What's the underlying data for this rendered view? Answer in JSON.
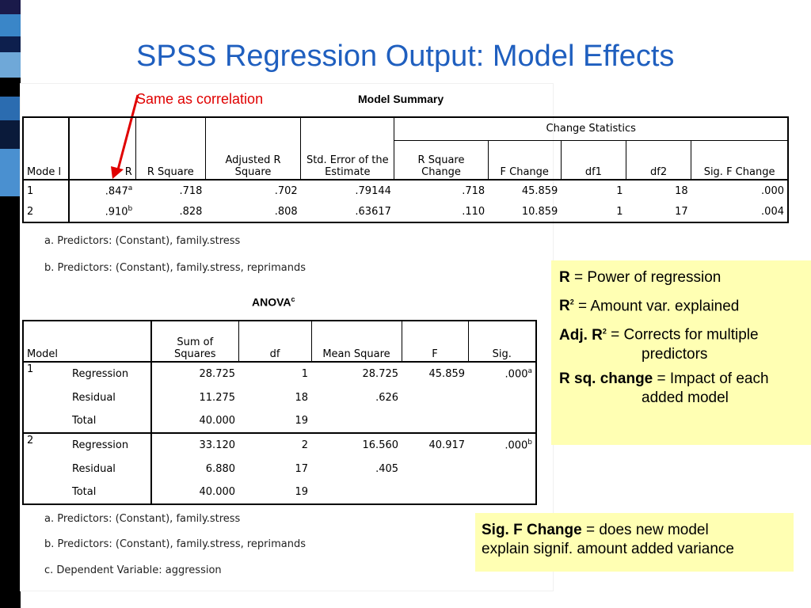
{
  "slide": {
    "title": "SPSS Regression Output: Model Effects",
    "annotation": "Same as correlation",
    "stripe_colors": [
      "#1a1a4a",
      "#3a86c8",
      "#0d1f4d",
      "#6fa8d8",
      "#000000",
      "#2b6cb0",
      "#0a1a3a",
      "#4a90d0",
      "#000000"
    ]
  },
  "model_summary": {
    "title": "Model Summary",
    "change_group": "Change Statistics",
    "headers": {
      "model": "Mode l",
      "r": "R",
      "r_square": "R Square",
      "adj_r_square": "Adjusted R Square",
      "std_error": "Std. Error of the Estimate",
      "r_square_change": "R Square Change",
      "f_change": "F Change",
      "df1": "df1",
      "df2": "df2",
      "sig_f_change": "Sig. F Change"
    },
    "rows": [
      {
        "model": "1",
        "r": ".847",
        "r_sup": "a",
        "r_square": ".718",
        "adj_r_square": ".702",
        "std_error": ".79144",
        "r_square_change": ".718",
        "f_change": "45.859",
        "df1": "1",
        "df2": "18",
        "sig_f_change": ".000"
      },
      {
        "model": "2",
        "r": ".910",
        "r_sup": "b",
        "r_square": ".828",
        "adj_r_square": ".808",
        "std_error": ".63617",
        "r_square_change": ".110",
        "f_change": "10.859",
        "df1": "1",
        "df2": "17",
        "sig_f_change": ".004"
      }
    ],
    "footnotes": [
      "a. Predictors: (Constant), family.stress",
      "b. Predictors: (Constant), family.stress, reprimands"
    ]
  },
  "anova": {
    "title": "ANOVA",
    "title_sup": "c",
    "headers": {
      "model": "Model",
      "sum_of_squares": "Sum of Squares",
      "df": "df",
      "mean_square": "Mean Square",
      "f": "F",
      "sig": "Sig."
    },
    "models": [
      {
        "model": "1",
        "rows": [
          {
            "source": "Regression",
            "ss": "28.725",
            "df": "1",
            "ms": "28.725",
            "f": "45.859",
            "sig": ".000",
            "sig_sup": "a"
          },
          {
            "source": "Residual",
            "ss": "11.275",
            "df": "18",
            "ms": ".626",
            "f": "",
            "sig": "",
            "sig_sup": ""
          },
          {
            "source": "Total",
            "ss": "40.000",
            "df": "19",
            "ms": "",
            "f": "",
            "sig": "",
            "sig_sup": ""
          }
        ]
      },
      {
        "model": "2",
        "rows": [
          {
            "source": "Regression",
            "ss": "33.120",
            "df": "2",
            "ms": "16.560",
            "f": "40.917",
            "sig": ".000",
            "sig_sup": "b"
          },
          {
            "source": "Residual",
            "ss": "6.880",
            "df": "17",
            "ms": ".405",
            "f": "",
            "sig": "",
            "sig_sup": ""
          },
          {
            "source": "Total",
            "ss": "40.000",
            "df": "19",
            "ms": "",
            "f": "",
            "sig": "",
            "sig_sup": ""
          }
        ]
      }
    ],
    "footnotes": [
      "a. Predictors: (Constant), family.stress",
      "b. Predictors: (Constant), family.stress, reprimands",
      "c. Dependent Variable: aggression"
    ]
  },
  "legend_box": {
    "items": [
      {
        "term": "R",
        "sup": "",
        "definition": " = Power of regression",
        "cont": ""
      },
      {
        "term": "R",
        "sup": "2",
        "definition": " = Amount var. explained",
        "cont": ""
      },
      {
        "term": "Adj. R",
        "sup": "2",
        "definition": " = Corrects for multiple",
        "cont": "predictors"
      },
      {
        "term": "R sq. change",
        "sup": "",
        "definition": " = Impact of each",
        "cont": "added model"
      }
    ]
  },
  "sig_box": {
    "term": "Sig. F Change",
    "definition": " = does new model",
    "line2": "explain signif.  amount added variance"
  }
}
